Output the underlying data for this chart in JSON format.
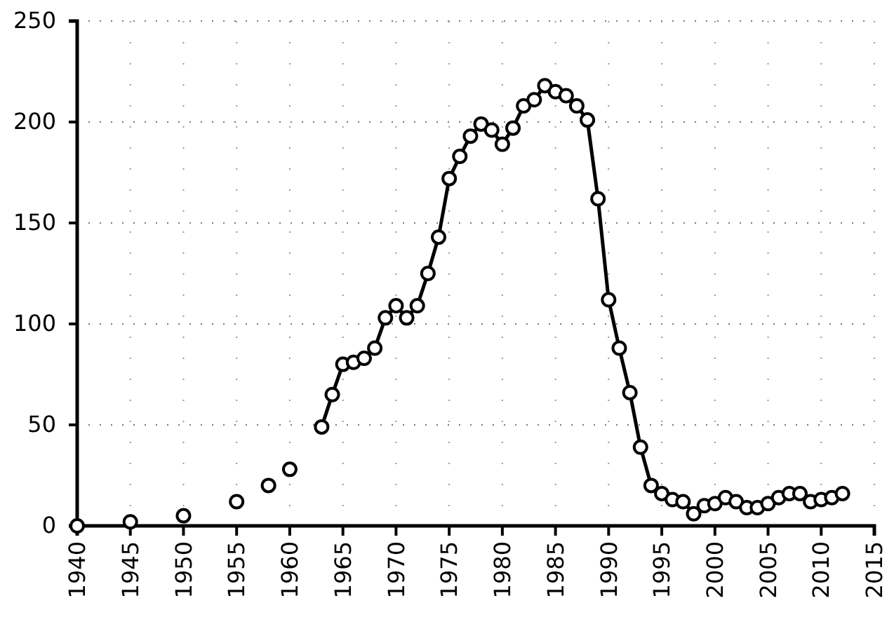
{
  "chart_data": {
    "type": "line",
    "series": [
      {
        "type": "scatter",
        "color": "#000000",
        "x": [
          1940,
          1945,
          1950,
          1955,
          1958,
          1960
        ],
        "values": [
          0,
          2,
          5,
          12,
          20,
          28
        ]
      },
      {
        "type": "line",
        "color": "#000000",
        "x": [
          1963,
          1964,
          1965,
          1966,
          1967,
          1968,
          1969,
          1970,
          1971,
          1972,
          1973,
          1974,
          1975,
          1976,
          1977,
          1978,
          1979,
          1980,
          1981,
          1982,
          1983,
          1984,
          1985,
          1986,
          1987,
          1988,
          1989,
          1990,
          1991,
          1992,
          1993,
          1994,
          1995,
          1996,
          1997,
          1998,
          1999,
          2000,
          2001,
          2002,
          2003,
          2004,
          2005,
          2006,
          2007,
          2008,
          2009,
          2010,
          2011,
          2012
        ],
        "values": [
          49,
          65,
          80,
          81,
          83,
          88,
          103,
          109,
          103,
          109,
          125,
          143,
          172,
          183,
          193,
          199,
          196,
          189,
          197,
          208,
          211,
          218,
          215,
          213,
          208,
          201,
          162,
          112,
          88,
          66,
          39,
          20,
          16,
          13,
          12,
          6,
          10,
          11,
          14,
          12,
          9,
          9,
          11,
          14,
          16,
          16,
          12,
          13,
          14,
          16
        ]
      }
    ],
    "xlim": [
      1940,
      2015
    ],
    "xticks": [
      1940,
      1945,
      1950,
      1955,
      1960,
      1965,
      1970,
      1975,
      1980,
      1985,
      1990,
      1995,
      2000,
      2005,
      2010,
      2015
    ],
    "ylim": [
      0,
      250
    ],
    "yticks": [
      0,
      50,
      100,
      150,
      200,
      250
    ],
    "grid": true,
    "marker": "circle",
    "line_style": "solid"
  }
}
